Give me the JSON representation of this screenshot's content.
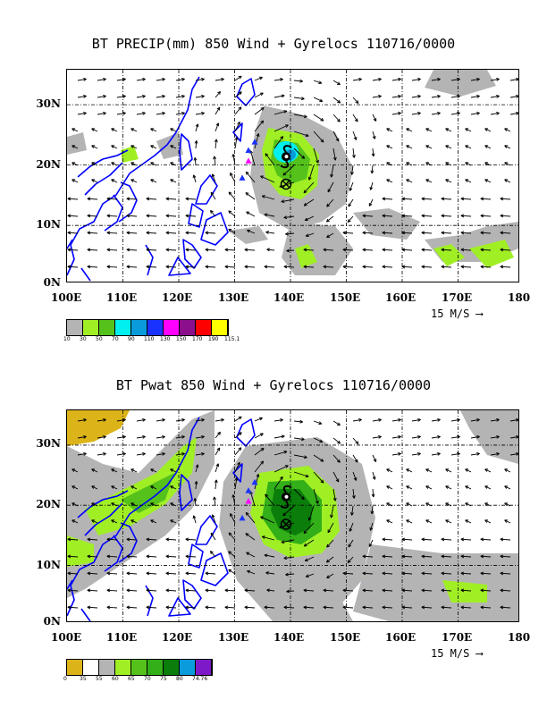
{
  "panels": [
    {
      "title": "BT PRECIP(mm) 850 Wind + Gyrelocs 110716/0000",
      "y_ticks": [
        "30N",
        "20N",
        "10N",
        "0N"
      ],
      "x_ticks": [
        "100E",
        "110E",
        "120E",
        "130E",
        "140E",
        "150E",
        "160E",
        "170E",
        "180"
      ],
      "scale_label": "15 M/S",
      "legend_colors": [
        "#b4b4b4",
        "#a0ef25",
        "#55c21b",
        "#00efef",
        "#0a9bdc",
        "#1932ff",
        "#ff00ff",
        "#8c0f8c",
        "#ff0000",
        "#ffff00"
      ],
      "legend_labels": [
        "10",
        "30",
        "50",
        "70",
        "90",
        "110",
        "130",
        "150",
        "170",
        "190",
        "115.1"
      ]
    },
    {
      "title": "BT Pwat 850 Wind + Gyrelocs 110716/0000",
      "y_ticks": [
        "30N",
        "20N",
        "10N",
        "0N"
      ],
      "x_ticks": [
        "100E",
        "110E",
        "120E",
        "130E",
        "140E",
        "150E",
        "160E",
        "170E",
        "180"
      ],
      "scale_label": "15 M/S",
      "legend_colors": [
        "#dcb419",
        "#ffffff",
        "#b4b4b4",
        "#a0ef25",
        "#55c21b",
        "#32af19",
        "#0a7d0a",
        "#0a9bdc",
        "#7d19c8"
      ],
      "legend_labels": [
        "0",
        "35",
        "55",
        "60",
        "65",
        "70",
        "75",
        "80",
        "74.76"
      ]
    }
  ],
  "colors": {
    "coast": "#0000ff",
    "grid": "#000000",
    "storm_marker": "#000000",
    "triangle_blue": "#1932ff",
    "triangle_magenta": "#ff00ff"
  }
}
